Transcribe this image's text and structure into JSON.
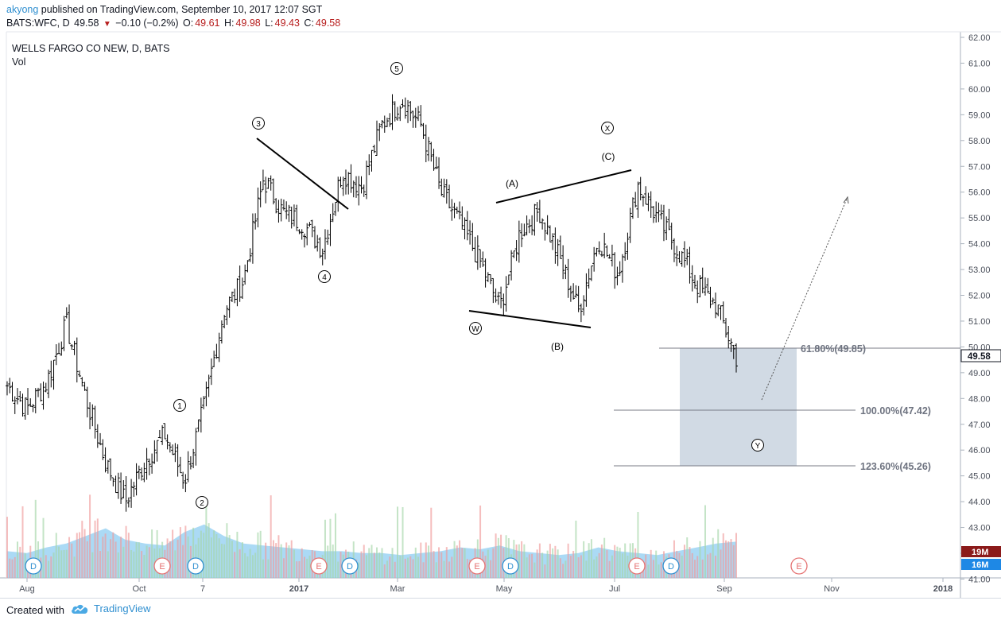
{
  "header": {
    "author": "akyong",
    "published": "published on TradingView.com, September 10, 2017 12:07 SGT",
    "symbol": "BATS:WFC, D",
    "last": "49.58",
    "change": "−0.10 (−0.2%)",
    "o_label": "O:",
    "o_value": "49.61",
    "h_label": "H:",
    "h_value": "49.98",
    "l_label": "L:",
    "l_value": "49.43",
    "c_label": "C:",
    "c_value": "49.58"
  },
  "legend": {
    "title": "WELLS FARGO CO NEW, D, BATS",
    "vol": "Vol"
  },
  "footer": {
    "created_with": "Created with",
    "brand": "TradingView",
    "logo_icon": "tradingview-cloud-icon"
  },
  "chart_data": {
    "type": "ohlc",
    "title": "WELLS FARGO CO NEW, D, BATS",
    "y_ticks": [
      "62.00",
      "61.00",
      "60.00",
      "59.00",
      "58.00",
      "57.00",
      "56.00",
      "55.00",
      "54.00",
      "53.00",
      "52.00",
      "51.00",
      "50.00",
      "49.00",
      "48.00",
      "47.00",
      "46.00",
      "45.00",
      "44.00",
      "43.00",
      "42.00",
      "41.00"
    ],
    "ylim": [
      40.75,
      62.2
    ],
    "x_ticks": [
      "Aug",
      "Oct",
      "7",
      "2017",
      "Mar",
      "May",
      "Jul",
      "Sep",
      "Nov",
      "2018"
    ],
    "last_price": "49.58",
    "volume_labels": [
      "19M",
      "16M"
    ],
    "series": [
      {
        "name": "price (approx. path)",
        "points": [
          [
            "Aug",
            48.5
          ],
          [
            "Aug+",
            47.6
          ],
          [
            "Sep",
            48.6
          ],
          [
            "Sep+",
            50.9
          ],
          [
            "Sep++",
            48.0
          ],
          [
            "Sep+++",
            45.5
          ],
          [
            "Oct",
            44.0
          ],
          [
            "Oct+",
            45.6
          ],
          [
            "Oct++",
            46.6
          ],
          [
            "Nov-",
            44.8
          ],
          [
            "7",
            47.7
          ],
          [
            "7+",
            51.4
          ],
          [
            "Nov+",
            52.6
          ],
          [
            "Dec-",
            56.5
          ],
          [
            "Dec",
            55.2
          ],
          [
            "Dec+",
            54.8
          ],
          [
            "2017",
            53.8
          ],
          [
            "Jan+",
            56.8
          ],
          [
            "Feb",
            56.2
          ],
          [
            "Feb+",
            58.6
          ],
          [
            "Mar",
            59.6
          ],
          [
            "Mar+",
            58.6
          ],
          [
            "Mar++",
            56.0
          ],
          [
            "Apr-",
            54.8
          ],
          [
            "Apr",
            53.3
          ],
          [
            "Apr+",
            51.5
          ],
          [
            "May",
            54.4
          ],
          [
            "May+",
            55.3
          ],
          [
            "May++",
            53.5
          ],
          [
            "Jun-",
            51.4
          ],
          [
            "Jun",
            54.2
          ],
          [
            "Jun+",
            52.8
          ],
          [
            "Jul",
            56.3
          ],
          [
            "Jul+",
            55.0
          ],
          [
            "Aug2",
            53.8
          ],
          [
            "Aug2+",
            52.4
          ],
          [
            "Sep2-",
            51.6
          ],
          [
            "Sep2",
            49.6
          ]
        ]
      },
      {
        "name": "volume (M)",
        "values": [
          14,
          13,
          16,
          18,
          22,
          26,
          20,
          18,
          17,
          24,
          28,
          22,
          18,
          17,
          16,
          15,
          14,
          14,
          13,
          13,
          12,
          13,
          14,
          16,
          15,
          17,
          14,
          13,
          12,
          13,
          16,
          14,
          13,
          12,
          14,
          16,
          18,
          19
        ]
      }
    ],
    "annotations": {
      "wave_labels": [
        "1",
        "2",
        "3",
        "4",
        "5",
        "W",
        "X",
        "Y"
      ],
      "corrective_labels": [
        "(A)",
        "(B)",
        "(C)"
      ],
      "fib_levels": [
        "61.80%(49.85)",
        "100.00%(47.42)",
        "123.60%(45.26)"
      ],
      "event_markers": [
        "D",
        "E",
        "D",
        "E",
        "D",
        "E",
        "D",
        "E",
        "D",
        "E"
      ]
    }
  }
}
